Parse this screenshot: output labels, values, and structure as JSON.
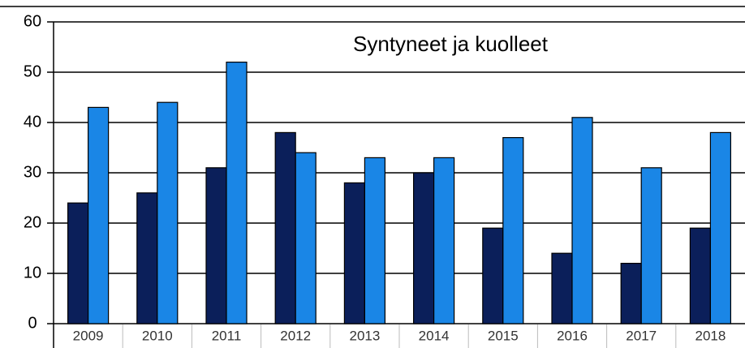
{
  "chart_data": {
    "type": "bar",
    "title": "Syntyneet ja kuolleet",
    "categories": [
      "2009",
      "2010",
      "2011",
      "2012",
      "2013",
      "2014",
      "2015",
      "2016",
      "2017",
      "2018"
    ],
    "series": [
      {
        "color": "#0b1f5a",
        "values": [
          24,
          26,
          31,
          38,
          28,
          30,
          19,
          14,
          12,
          19
        ]
      },
      {
        "color": "#1a86e6",
        "values": [
          43,
          44,
          52,
          34,
          33,
          33,
          37,
          41,
          31,
          38
        ]
      }
    ],
    "ylim": [
      0,
      60
    ],
    "yticks": [
      0,
      10,
      20,
      30,
      40,
      50,
      60
    ],
    "grid": true
  }
}
